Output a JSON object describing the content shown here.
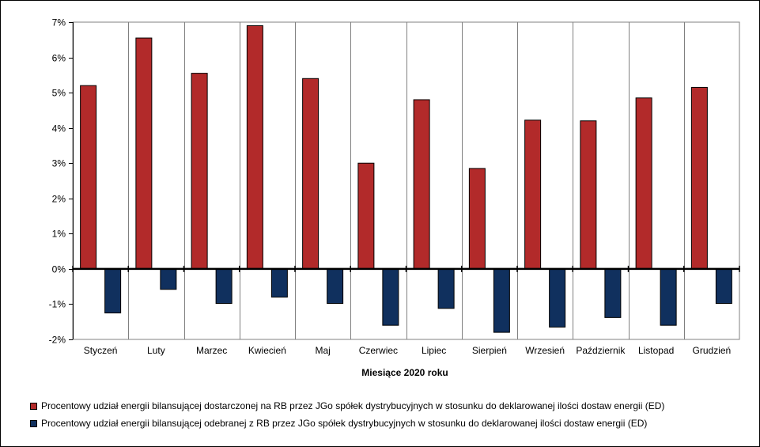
{
  "chart_data": {
    "type": "bar",
    "title": "",
    "xlabel": "Miesiące 2020  roku",
    "ylabel": "",
    "ylim": [
      -2,
      7
    ],
    "y_ticks": [
      "7%",
      "6%",
      "5%",
      "4%",
      "3%",
      "2%",
      "1%",
      "0%",
      "-1%",
      "-2%"
    ],
    "y_tick_values": [
      7,
      6,
      5,
      4,
      3,
      2,
      1,
      0,
      -1,
      -2
    ],
    "grid": "vertical",
    "legend_position": "bottom",
    "categories": [
      "Styczeń",
      "Luty",
      "Marzec",
      "Kwiecień",
      "Maj",
      "Czerwiec",
      "Lipiec",
      "Sierpień",
      "Wrzesień",
      "Październik",
      "Listopad",
      "Grudzień"
    ],
    "series": [
      {
        "name": "Procentowy udział energii bilansującej dostarczonej na RB przez JGo spółek dystrybucyjnych w stosunku do deklarowanej ilości dostaw energii (ED)",
        "color": "#b22a2a",
        "values": [
          5.2,
          6.55,
          5.55,
          6.9,
          5.4,
          3.0,
          4.8,
          2.85,
          4.22,
          4.2,
          4.85,
          5.15
        ]
      },
      {
        "name": "Procentowy udział energii bilansującej odebranej z RB przez JGo spółek dystrybucyjnych w stosunku do deklarowanej ilości dostaw energii (ED)",
        "color": "#10305e",
        "values": [
          -1.25,
          -0.58,
          -0.98,
          -0.8,
          -0.98,
          -1.6,
          -1.12,
          -1.8,
          -1.65,
          -1.38,
          -1.6,
          -0.98
        ]
      }
    ]
  }
}
